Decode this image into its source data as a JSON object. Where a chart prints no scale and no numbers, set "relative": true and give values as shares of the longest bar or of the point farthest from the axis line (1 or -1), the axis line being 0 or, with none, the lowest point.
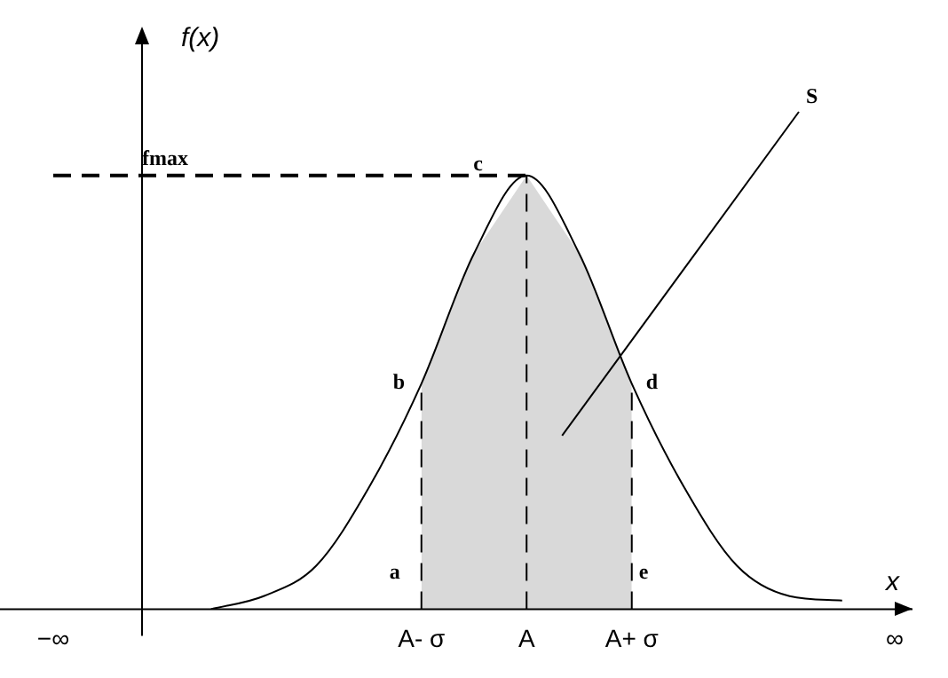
{
  "chart_data": {
    "type": "line",
    "relative": true,
    "xlabel": "x",
    "ylabel": "f(x)",
    "categories": [
      "−∞",
      null,
      null,
      null,
      null,
      null,
      null,
      "A- σ",
      null,
      "A",
      null,
      "A+ σ",
      null,
      null,
      null,
      null,
      "∞"
    ],
    "series": [
      {
        "color": "#000000",
        "values": [
          null,
          null,
          null,
          0,
          0.03,
          0.1,
          0.28,
          0.52,
          0.82,
          1,
          0.82,
          0.52,
          0.28,
          0.1,
          0.03,
          0.02,
          null
        ]
      }
    ],
    "ref_lines": [
      {
        "axis": "y",
        "value": 1,
        "label": "fmax",
        "line_style": "dashed",
        "color": "#000000"
      },
      {
        "axis": "x",
        "value": "A- σ",
        "line_style": "dashed",
        "color": "#000000"
      },
      {
        "axis": "x",
        "value": "A",
        "line_style": "dashed",
        "color": "#000000"
      },
      {
        "axis": "x",
        "value": "A+ σ",
        "line_style": "dashed",
        "color": "#000000"
      }
    ],
    "bands": [
      {
        "axis": "x",
        "from": "A- σ",
        "to": "A+ σ",
        "color": "#d9d9d9"
      }
    ],
    "annotations": [
      {
        "text": "a",
        "x": "A- σ",
        "y": 0.05
      },
      {
        "text": "b",
        "x": "A- σ",
        "y": 0.52
      },
      {
        "text": "c",
        "x": "A",
        "y": 1
      },
      {
        "text": "d",
        "x": "A+ σ",
        "y": 0.52
      },
      {
        "text": "e",
        "x": "A+ σ",
        "y": 0.05
      },
      "S"
    ],
    "grid": false,
    "legend": false,
    "marker": "none",
    "line_style": "solid"
  }
}
